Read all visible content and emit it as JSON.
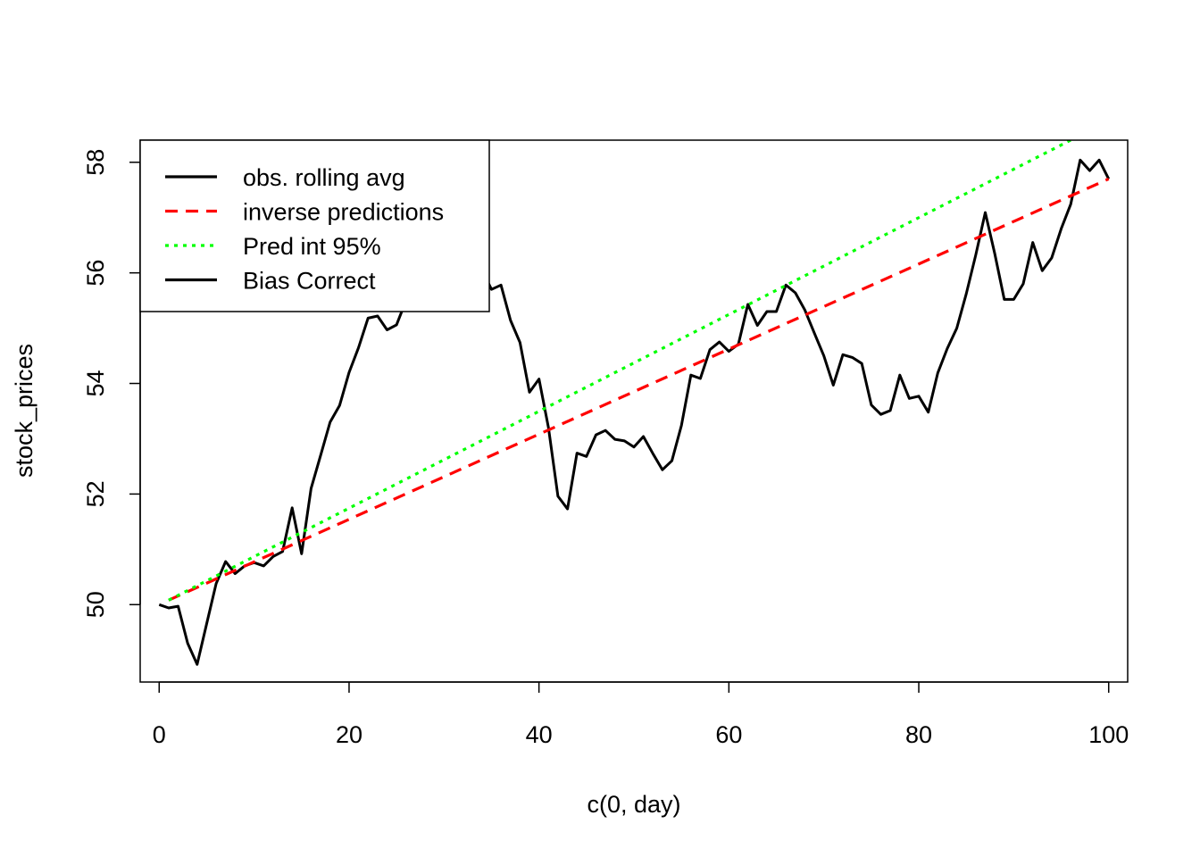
{
  "chart_data": {
    "type": "line",
    "title": "",
    "xlabel": "c(0, day)",
    "ylabel": "stock_prices",
    "xlim": [
      -2,
      102
    ],
    "ylim": [
      48.6,
      58.4
    ],
    "x_ticks": [
      0,
      20,
      40,
      60,
      80,
      100
    ],
    "y_ticks": [
      50,
      52,
      54,
      56,
      58
    ],
    "x_tick_labels": [
      "0",
      "20",
      "40",
      "60",
      "80",
      "100"
    ],
    "y_tick_labels": [
      "50",
      "52",
      "54",
      "56",
      "58"
    ],
    "grid": false,
    "legend_position": "top-left",
    "legend": [
      {
        "label": "obs. rolling avg",
        "color": "#000000",
        "style": "solid"
      },
      {
        "label": "inverse predictions",
        "color": "#ff0000",
        "style": "dashed"
      },
      {
        "label": "Pred int 95%",
        "color": "#00ff00",
        "style": "dotted"
      },
      {
        "label": "Bias Correct",
        "color": "#000000",
        "style": "solid"
      }
    ],
    "series": [
      {
        "name": "obs. rolling avg",
        "color": "#000000",
        "style": "solid",
        "x": [
          0,
          1,
          2,
          3,
          4,
          5,
          6,
          7,
          8,
          9,
          10,
          11,
          12,
          13,
          14,
          15,
          16,
          17,
          18,
          19,
          20,
          21,
          22,
          23,
          24,
          25,
          26,
          27,
          28,
          29,
          30,
          31,
          32,
          33,
          34,
          35,
          36,
          37,
          38,
          39,
          40,
          41,
          42,
          43,
          44,
          45,
          46,
          47,
          48,
          49,
          50,
          51,
          52,
          53,
          54,
          55,
          56,
          57,
          58,
          59,
          60,
          61,
          62,
          63,
          64,
          65,
          66,
          67,
          68,
          69,
          70,
          71,
          72,
          73,
          74,
          75,
          76,
          77,
          78,
          79,
          80,
          81,
          82,
          83,
          84,
          85,
          86,
          87,
          88,
          89,
          90,
          91,
          92,
          93,
          94,
          95,
          96,
          97,
          98,
          99,
          100
        ],
        "y": [
          50.0,
          49.94,
          49.97,
          49.3,
          48.92,
          49.65,
          50.38,
          50.78,
          50.56,
          50.7,
          50.76,
          50.7,
          50.87,
          50.96,
          51.75,
          50.92,
          52.1,
          52.7,
          53.3,
          53.6,
          54.2,
          54.65,
          55.18,
          55.22,
          54.97,
          55.06,
          55.5,
          55.8,
          56.0,
          56.3,
          56.5,
          56.45,
          56.3,
          56.15,
          56.05,
          55.7,
          55.78,
          55.14,
          54.74,
          53.84,
          54.08,
          53.2,
          51.96,
          51.73,
          52.74,
          52.68,
          53.07,
          53.15,
          52.99,
          52.96,
          52.85,
          53.04,
          52.73,
          52.44,
          52.6,
          53.24,
          54.15,
          54.09,
          54.61,
          54.75,
          54.58,
          54.71,
          55.43,
          55.05,
          55.3,
          55.3,
          55.78,
          55.64,
          55.33,
          54.91,
          54.5,
          53.97,
          54.52,
          54.47,
          54.36,
          53.61,
          53.44,
          53.51,
          54.15,
          53.73,
          53.77,
          53.48,
          54.19,
          54.63,
          55.0,
          55.62,
          56.32,
          57.09,
          56.35,
          55.52,
          55.52,
          55.8,
          56.55,
          56.04,
          56.27,
          56.8,
          57.24,
          58.04,
          57.85,
          58.04,
          57.7
        ]
      },
      {
        "name": "inverse predictions",
        "color": "#ff0000",
        "style": "dashed",
        "x": [
          1,
          100
        ],
        "y": [
          50.08,
          57.7
        ]
      },
      {
        "name": "Pred int 95%",
        "color": "#00ff00",
        "style": "dotted",
        "x": [
          1,
          96
        ],
        "y": [
          50.08,
          58.4
        ]
      }
    ]
  }
}
